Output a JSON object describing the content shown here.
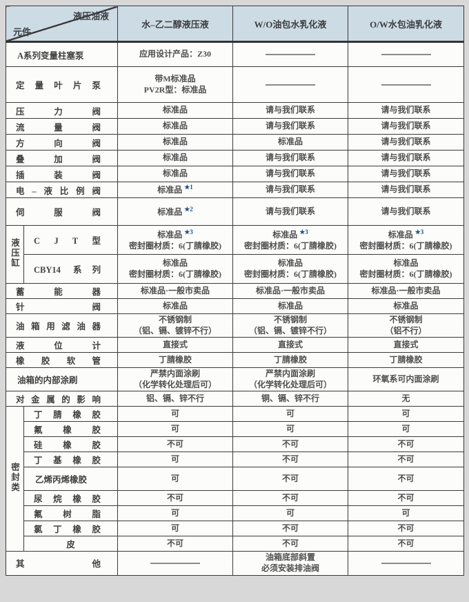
{
  "colors": {
    "page_bg": "#d8d8d8",
    "header_bg": "#cddbe5",
    "border": "#3a3a3a",
    "star_blue": "#1d4f8f",
    "dash_gray": "#8a8a8a"
  },
  "header": {
    "corner_top": "液压油液",
    "corner_bottom": "元件",
    "columns": [
      "水–乙二醇液压液",
      "W/O油包水乳化液",
      "O/W水包油乳化液"
    ]
  },
  "table": {
    "rows": [
      {
        "label": "A系列变量柱塞泵",
        "tight": true,
        "h": 36,
        "cells": [
          {
            "lines": [
              "应用设计产品：Z30"
            ]
          },
          {
            "dash": true
          },
          {
            "dash": true
          }
        ]
      },
      {
        "label": "定量叶片泵",
        "h": 52,
        "cells": [
          {
            "lines": [
              "带M标准品",
              "PV2R型：标准品"
            ]
          },
          {
            "dash": true
          },
          {
            "dash": true
          }
        ]
      },
      {
        "label": "压力阀",
        "h": 23,
        "cells": [
          {
            "lines": [
              "标准品"
            ]
          },
          {
            "lines": [
              "请与我们联系"
            ]
          },
          {
            "lines": [
              "请与我们联系"
            ]
          }
        ]
      },
      {
        "label": "流量阀",
        "h": 23,
        "cells": [
          {
            "lines": [
              "标准品"
            ]
          },
          {
            "lines": [
              "请与我们联系"
            ]
          },
          {
            "lines": [
              "请与我们联系"
            ]
          }
        ]
      },
      {
        "label": "方向阀",
        "h": 23,
        "cells": [
          {
            "lines": [
              "标准品"
            ]
          },
          {
            "lines": [
              "标准品"
            ]
          },
          {
            "lines": [
              "请与我们联系"
            ]
          }
        ]
      },
      {
        "label": "叠加阀",
        "h": 23,
        "cells": [
          {
            "lines": [
              "标准品"
            ]
          },
          {
            "lines": [
              "请与我们联系"
            ]
          },
          {
            "lines": [
              "请与我们联系"
            ]
          }
        ]
      },
      {
        "label": "插装阀",
        "h": 23,
        "cells": [
          {
            "lines": [
              "标准品"
            ]
          },
          {
            "lines": [
              "请与我们联系"
            ]
          },
          {
            "lines": [
              "请与我们联系"
            ]
          }
        ]
      },
      {
        "label": "电–液比例阀",
        "h": 23,
        "cells": [
          {
            "lines": [
              "标准品 ★1"
            ]
          },
          {
            "lines": [
              "请与我们联系"
            ]
          },
          {
            "lines": [
              "请与我们联系"
            ]
          }
        ]
      },
      {
        "label": "伺服阀",
        "h": 40,
        "cells": [
          {
            "lines": [
              "标准品 ★2"
            ]
          },
          {
            "lines": [
              "请与我们联系"
            ]
          },
          {
            "lines": [
              "请与我们联系"
            ]
          }
        ]
      },
      {
        "group": {
          "name": "液压缸",
          "span": 2
        },
        "label": "C J T 型",
        "h": 42,
        "cells": [
          {
            "lines": [
              "标准品 ★3",
              "密封圈材质：6(丁腈橡胶)"
            ]
          },
          {
            "lines": [
              "标准品 ★3",
              "密封圈材质：6(丁腈橡胶)"
            ]
          },
          {
            "lines": [
              "标准品 ★3",
              "密封圈材质：6(丁腈橡胶)"
            ]
          }
        ]
      },
      {
        "member": true,
        "label": "CBY14 系列",
        "h": 42,
        "cells": [
          {
            "lines": [
              "标准品",
              "密封圈材质：6(丁腈橡胶)"
            ]
          },
          {
            "lines": [
              "标准品",
              "密封圈材质：6(丁腈橡胶)"
            ]
          },
          {
            "lines": [
              "标准品",
              "密封圈材质：6(丁腈橡胶)"
            ]
          }
        ]
      },
      {
        "label": "蓄能器",
        "h": 22,
        "cells": [
          {
            "lines": [
              "标准品·一般市卖品"
            ]
          },
          {
            "lines": [
              "标准品·一般市卖品"
            ]
          },
          {
            "lines": [
              "标准品·一般市卖品"
            ]
          }
        ]
      },
      {
        "label": "针阀",
        "h": 22,
        "cells": [
          {
            "lines": [
              "标准品"
            ]
          },
          {
            "lines": [
              "标准品"
            ]
          },
          {
            "lines": [
              "标准品"
            ]
          }
        ]
      },
      {
        "label": "油箱用滤油器",
        "h": 34,
        "cells": [
          {
            "lines": [
              "不锈钢制",
              "（铝、镉、镀锌不行）"
            ]
          },
          {
            "lines": [
              "不锈钢制",
              "（铝、镉、镀锌不行）"
            ]
          },
          {
            "lines": [
              "不锈钢制",
              "（铝不行）"
            ]
          }
        ]
      },
      {
        "label": "液位计",
        "h": 22,
        "cells": [
          {
            "lines": [
              "直接式"
            ]
          },
          {
            "lines": [
              "直接式"
            ]
          },
          {
            "lines": [
              "直接式"
            ]
          }
        ]
      },
      {
        "label": "橡胶软管",
        "h": 22,
        "cells": [
          {
            "lines": [
              "丁腈橡胶"
            ]
          },
          {
            "lines": [
              "丁腈橡胶"
            ]
          },
          {
            "lines": [
              "丁腈橡胶"
            ]
          }
        ]
      },
      {
        "label": "油箱的内部涂刷",
        "tight": true,
        "h": 34,
        "cells": [
          {
            "lines": [
              "严禁内面涂刷",
              "（化学转化处理后可）"
            ]
          },
          {
            "lines": [
              "严禁内面涂刷",
              "（化学转化处理后可）"
            ]
          },
          {
            "lines": [
              "环氧系可内面涂刷"
            ]
          }
        ]
      },
      {
        "label": "对金属的影响",
        "h": 22,
        "cells": [
          {
            "lines": [
              "铝、镉、锌不行"
            ]
          },
          {
            "lines": [
              "铜、镉、锌不行"
            ]
          },
          {
            "lines": [
              "无"
            ]
          }
        ]
      },
      {
        "group": {
          "name": "密封类",
          "span": 9
        },
        "label": "丁腈橡胶",
        "h": 22,
        "cells": [
          {
            "lines": [
              "可"
            ]
          },
          {
            "lines": [
              "可"
            ]
          },
          {
            "lines": [
              "可"
            ]
          }
        ]
      },
      {
        "member": true,
        "label": "氟橡胶",
        "h": 22,
        "cells": [
          {
            "lines": [
              "可"
            ]
          },
          {
            "lines": [
              "可"
            ]
          },
          {
            "lines": [
              "可"
            ]
          }
        ]
      },
      {
        "member": true,
        "label": "硅橡胶",
        "h": 22,
        "cells": [
          {
            "lines": [
              "不可"
            ]
          },
          {
            "lines": [
              "不可"
            ]
          },
          {
            "lines": [
              "不可"
            ]
          }
        ]
      },
      {
        "member": true,
        "label": "丁基橡胶",
        "h": 22,
        "cells": [
          {
            "lines": [
              "可"
            ]
          },
          {
            "lines": [
              "不可"
            ]
          },
          {
            "lines": [
              "不可"
            ]
          }
        ]
      },
      {
        "member": true,
        "label": "乙烯丙烯橡胶",
        "tight": true,
        "h": 34,
        "cells": [
          {
            "lines": [
              "可"
            ]
          },
          {
            "lines": [
              "不可"
            ]
          },
          {
            "lines": [
              "不可"
            ]
          }
        ]
      },
      {
        "member": true,
        "label": "尿烷橡胶",
        "h": 22,
        "cells": [
          {
            "lines": [
              "不可"
            ]
          },
          {
            "lines": [
              "不可"
            ]
          },
          {
            "lines": [
              "不可"
            ]
          }
        ]
      },
      {
        "member": true,
        "label": "氟树脂",
        "h": 22,
        "cells": [
          {
            "lines": [
              "可"
            ]
          },
          {
            "lines": [
              "可"
            ]
          },
          {
            "lines": [
              "可"
            ]
          }
        ]
      },
      {
        "member": true,
        "label": "氯丁橡胶",
        "h": 22,
        "cells": [
          {
            "lines": [
              "可"
            ]
          },
          {
            "lines": [
              "不可"
            ]
          },
          {
            "lines": [
              "不可"
            ]
          }
        ]
      },
      {
        "member": true,
        "label": "皮",
        "center": true,
        "h": 21,
        "cells": [
          {
            "lines": [
              "不可"
            ]
          },
          {
            "lines": [
              "不可"
            ]
          },
          {
            "lines": [
              "不可"
            ]
          }
        ]
      },
      {
        "label": "其他",
        "h": 34,
        "cells": [
          {
            "dash": true
          },
          {
            "lines": [
              "油箱底部斜置",
              "必须安装排油阀"
            ]
          },
          {
            "dash": true
          }
        ]
      }
    ]
  }
}
